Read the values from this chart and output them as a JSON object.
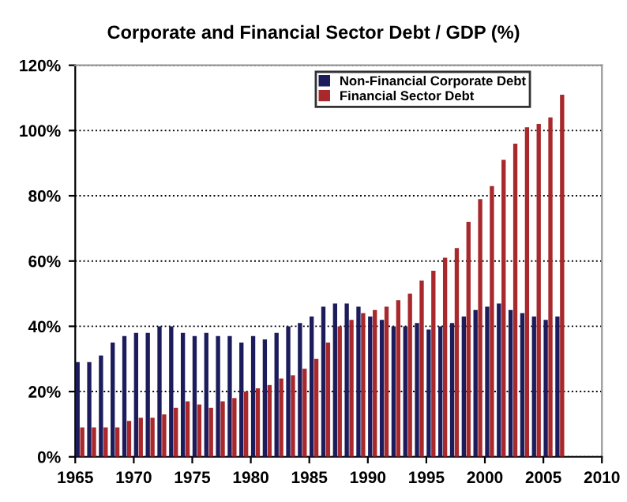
{
  "chart_data": {
    "type": "bar",
    "title": "Corporate and Financial Sector Debt / GDP (%)",
    "x": [
      1965,
      1966,
      1967,
      1968,
      1969,
      1970,
      1971,
      1972,
      1973,
      1974,
      1975,
      1976,
      1977,
      1978,
      1979,
      1980,
      1981,
      1982,
      1983,
      1984,
      1985,
      1986,
      1987,
      1988,
      1989,
      1990,
      1991,
      1992,
      1993,
      1994,
      1995,
      1996,
      1997,
      1998,
      1999,
      2000,
      2001,
      2002,
      2003,
      2004,
      2005,
      2006
    ],
    "series": [
      {
        "name": "Non-Financial Corporate Debt",
        "color": "#1c1c5c",
        "values": [
          29,
          29,
          31,
          35,
          37,
          38,
          38,
          40,
          40,
          38,
          37,
          38,
          37,
          37,
          35,
          37,
          36,
          38,
          40,
          41,
          43,
          46,
          47,
          47,
          46,
          43,
          42,
          40,
          40,
          41,
          39,
          40,
          41,
          43,
          45,
          46,
          47,
          45,
          44,
          43,
          42,
          43
        ]
      },
      {
        "name": "Financial Sector Debt",
        "color": "#a8282c",
        "values": [
          9,
          9,
          9,
          9,
          11,
          12,
          12,
          13,
          15,
          17,
          16,
          15,
          17,
          18,
          20,
          21,
          22,
          24,
          25,
          27,
          30,
          35,
          40,
          42,
          44,
          45,
          46,
          48,
          50,
          54,
          57,
          61,
          64,
          72,
          79,
          83,
          91,
          96,
          101,
          102,
          104,
          111
        ]
      }
    ],
    "xlim": [
      1965,
      2010
    ],
    "xticks": [
      1965,
      1970,
      1975,
      1980,
      1985,
      1990,
      1995,
      2000,
      2005,
      2010
    ],
    "ylim": [
      0,
      120
    ],
    "yticks": [
      {
        "value": 0,
        "label": "0%"
      },
      {
        "value": 20,
        "label": "20%"
      },
      {
        "value": 40,
        "label": "40%"
      },
      {
        "value": 60,
        "label": "60%"
      },
      {
        "value": 80,
        "label": "80%"
      },
      {
        "value": 100,
        "label": "100%"
      },
      {
        "value": 120,
        "label": "120%"
      }
    ],
    "grid": "y",
    "legend": "top"
  }
}
